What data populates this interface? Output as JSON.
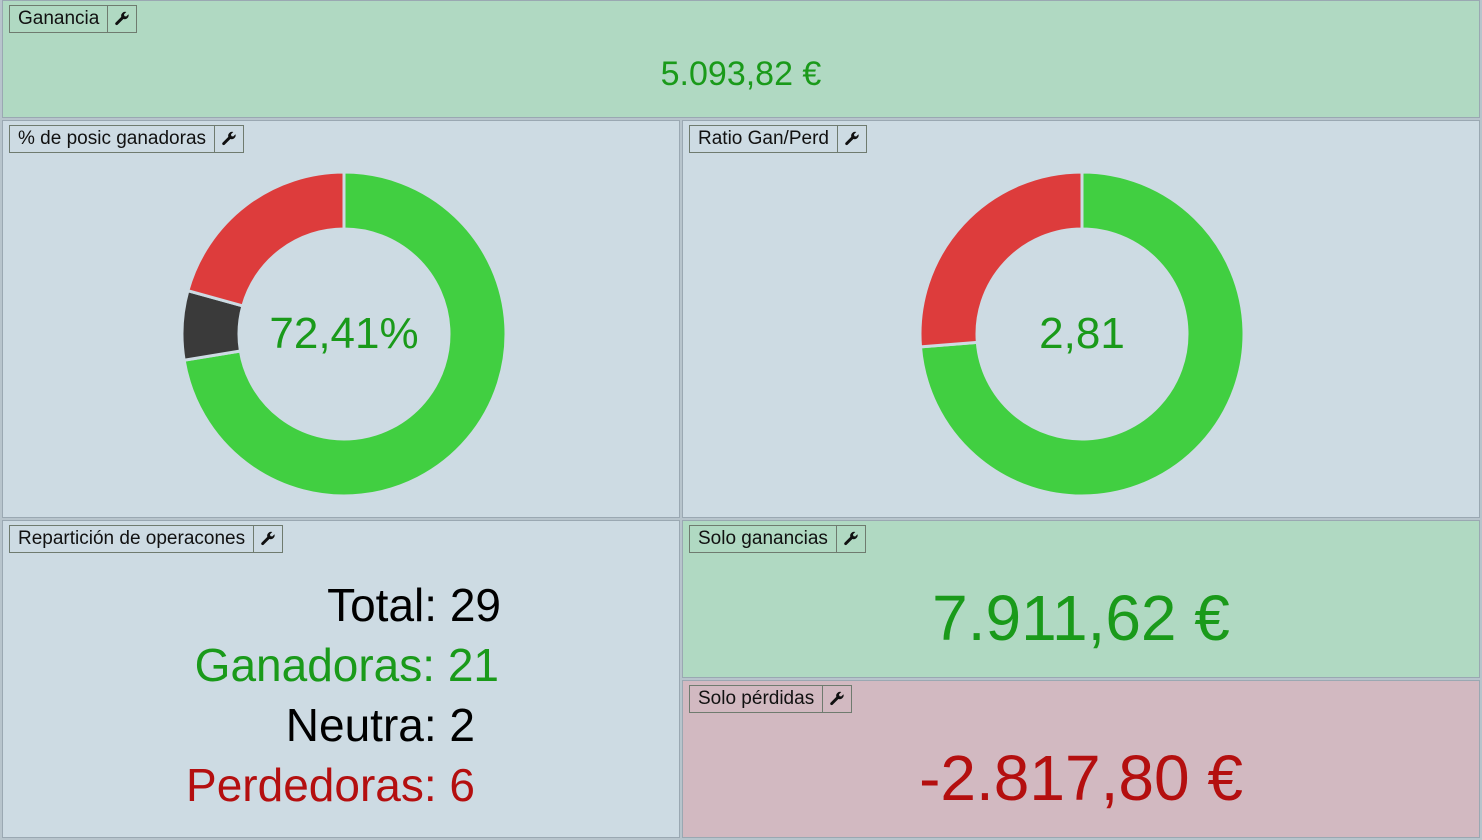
{
  "panels": {
    "ganancia": {
      "title": "Ganancia",
      "value": "5.093,82 €"
    },
    "win_pct": {
      "title": "% de posic ganadoras",
      "center": "72,41%",
      "segments": [
        {
          "name": "ganadoras",
          "value": 21,
          "color": "#41cf41"
        },
        {
          "name": "neutra",
          "value": 2,
          "color": "#3a3a3a"
        },
        {
          "name": "perdedoras",
          "value": 6,
          "color": "#dd3c3c"
        }
      ]
    },
    "ratio": {
      "title": "Ratio Gan/Perd",
      "center": "2,81",
      "segments": [
        {
          "name": "ganancias",
          "value": 7911.62,
          "color": "#41cf41"
        },
        {
          "name": "perdidas",
          "value": 2817.8,
          "color": "#dd3c3c"
        }
      ]
    },
    "reparticion": {
      "title": "Repartición de operacones",
      "total": "Total: 29",
      "ganadoras": "Ganadoras: 21",
      "neutra": "Neutra: 2",
      "perdedoras": "Perdedoras: 6"
    },
    "solo_ganancias": {
      "title": "Solo ganancias",
      "value": "7.911,62 €"
    },
    "solo_perdidas": {
      "title": "Solo pérdidas",
      "value": "-2.817,80 €"
    }
  },
  "colors": {
    "green_text": "#1a9a1a",
    "red_text": "#b40f0f",
    "black_text": "#000000"
  },
  "icons": {
    "settings": "wrench-icon"
  }
}
